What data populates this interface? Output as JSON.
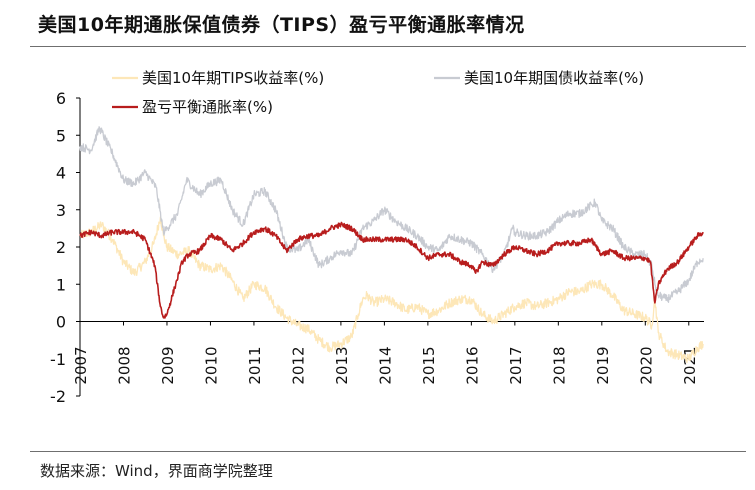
{
  "title": "美国10年期通胀保值债券（TIPS）盈亏平衡通胀率情况",
  "source": "数据来源：Wind，界面商学院整理",
  "chart_data": {
    "type": "line",
    "title": "美国10年期通胀保值债券（TIPS）盈亏平衡通胀率情况",
    "xlabel": "",
    "ylabel": "",
    "ylim": [
      -2,
      6
    ],
    "yticks": [
      -2,
      -1,
      0,
      1,
      2,
      3,
      4,
      5,
      6
    ],
    "xlim": [
      2007.0,
      2021.35
    ],
    "xticks": [
      "2007",
      "2008",
      "2009",
      "2010",
      "2011",
      "2012",
      "2013",
      "2014",
      "2015",
      "2016",
      "2017",
      "2018",
      "2019",
      "2020",
      "2021"
    ],
    "grid": false,
    "legend_position": "top",
    "series": [
      {
        "name": "美国10年期TIPS收益率(%)",
        "color": "#fde7b8",
        "x": [
          2007.0,
          2007.25,
          2007.5,
          2007.75,
          2008.0,
          2008.25,
          2008.5,
          2008.7,
          2008.85,
          2008.92,
          2009.0,
          2009.25,
          2009.5,
          2009.75,
          2010.0,
          2010.25,
          2010.5,
          2010.75,
          2011.0,
          2011.25,
          2011.5,
          2011.75,
          2012.0,
          2012.25,
          2012.5,
          2012.75,
          2013.0,
          2013.25,
          2013.4,
          2013.5,
          2013.6,
          2013.75,
          2014.0,
          2014.25,
          2014.5,
          2014.75,
          2015.0,
          2015.25,
          2015.5,
          2015.75,
          2016.0,
          2016.25,
          2016.5,
          2016.75,
          2017.0,
          2017.25,
          2017.5,
          2017.75,
          2018.0,
          2018.25,
          2018.5,
          2018.75,
          2019.0,
          2019.25,
          2019.5,
          2019.75,
          2020.0,
          2020.15,
          2020.22,
          2020.3,
          2020.5,
          2020.75,
          2021.0,
          2021.2,
          2021.33
        ],
        "values": [
          2.3,
          2.4,
          2.6,
          2.2,
          1.6,
          1.3,
          1.6,
          2.1,
          2.8,
          2.3,
          2.0,
          1.8,
          1.9,
          1.5,
          1.4,
          1.5,
          1.1,
          0.6,
          1.0,
          0.9,
          0.4,
          0.1,
          -0.1,
          -0.2,
          -0.5,
          -0.7,
          -0.6,
          -0.4,
          0.2,
          0.6,
          0.7,
          0.5,
          0.6,
          0.5,
          0.3,
          0.4,
          0.2,
          0.3,
          0.5,
          0.6,
          0.6,
          0.2,
          0.0,
          0.2,
          0.4,
          0.5,
          0.4,
          0.5,
          0.6,
          0.8,
          0.8,
          1.0,
          1.0,
          0.7,
          0.3,
          0.2,
          0.1,
          -0.1,
          0.6,
          -0.3,
          -0.8,
          -0.9,
          -1.0,
          -0.7,
          -0.6
        ]
      },
      {
        "name": "美国10年期国债收益率(%)",
        "color": "#c8cbd2",
        "x": [
          2007.0,
          2007.25,
          2007.45,
          2007.75,
          2008.0,
          2008.25,
          2008.5,
          2008.75,
          2008.92,
          2009.0,
          2009.25,
          2009.45,
          2009.75,
          2010.0,
          2010.25,
          2010.5,
          2010.75,
          2011.0,
          2011.25,
          2011.5,
          2011.75,
          2012.0,
          2012.25,
          2012.5,
          2012.75,
          2013.0,
          2013.25,
          2013.5,
          2013.75,
          2014.0,
          2014.25,
          2014.5,
          2014.75,
          2015.0,
          2015.25,
          2015.5,
          2015.75,
          2016.0,
          2016.25,
          2016.5,
          2016.75,
          2016.95,
          2017.0,
          2017.25,
          2017.5,
          2017.75,
          2018.0,
          2018.25,
          2018.5,
          2018.85,
          2019.0,
          2019.25,
          2019.5,
          2019.75,
          2020.0,
          2020.15,
          2020.22,
          2020.3,
          2020.5,
          2020.75,
          2021.0,
          2021.2,
          2021.33
        ],
        "values": [
          4.7,
          4.6,
          5.2,
          4.5,
          3.8,
          3.7,
          4.0,
          3.6,
          2.4,
          2.5,
          2.9,
          3.8,
          3.4,
          3.7,
          3.8,
          3.0,
          2.6,
          3.4,
          3.5,
          3.0,
          2.0,
          1.9,
          2.2,
          1.5,
          1.7,
          1.9,
          1.8,
          2.5,
          2.7,
          3.0,
          2.7,
          2.5,
          2.3,
          2.0,
          1.9,
          2.3,
          2.2,
          2.1,
          1.8,
          1.4,
          1.8,
          2.5,
          2.4,
          2.3,
          2.3,
          2.4,
          2.7,
          2.9,
          2.9,
          3.2,
          2.7,
          2.5,
          2.0,
          1.8,
          1.8,
          1.5,
          1.0,
          0.7,
          0.6,
          0.8,
          1.1,
          1.6,
          1.7
        ]
      },
      {
        "name": "盈亏平衡通胀率(%)",
        "color": "#b81d1d",
        "x": [
          2007.0,
          2007.25,
          2007.5,
          2007.75,
          2008.0,
          2008.25,
          2008.5,
          2008.72,
          2008.85,
          2008.92,
          2009.0,
          2009.2,
          2009.35,
          2009.5,
          2009.75,
          2010.0,
          2010.25,
          2010.5,
          2010.75,
          2011.0,
          2011.25,
          2011.5,
          2011.75,
          2012.0,
          2012.25,
          2012.5,
          2012.75,
          2013.0,
          2013.25,
          2013.5,
          2013.75,
          2014.0,
          2014.25,
          2014.5,
          2014.75,
          2015.0,
          2015.25,
          2015.5,
          2015.75,
          2016.0,
          2016.1,
          2016.25,
          2016.5,
          2016.75,
          2017.0,
          2017.25,
          2017.5,
          2017.75,
          2018.0,
          2018.25,
          2018.5,
          2018.75,
          2019.0,
          2019.25,
          2019.5,
          2019.75,
          2020.0,
          2020.12,
          2020.18,
          2020.22,
          2020.3,
          2020.5,
          2020.75,
          2021.0,
          2021.2,
          2021.33
        ],
        "values": [
          2.3,
          2.4,
          2.3,
          2.4,
          2.4,
          2.4,
          2.2,
          1.5,
          0.4,
          0.1,
          0.2,
          1.0,
          1.6,
          1.8,
          1.9,
          2.3,
          2.2,
          1.9,
          2.1,
          2.4,
          2.5,
          2.3,
          1.9,
          2.2,
          2.3,
          2.3,
          2.5,
          2.6,
          2.5,
          2.2,
          2.2,
          2.2,
          2.2,
          2.2,
          2.0,
          1.7,
          1.8,
          1.8,
          1.6,
          1.5,
          1.3,
          1.6,
          1.5,
          1.8,
          2.0,
          1.9,
          1.8,
          1.9,
          2.1,
          2.1,
          2.1,
          2.2,
          1.8,
          1.9,
          1.7,
          1.7,
          1.7,
          1.6,
          0.9,
          0.5,
          1.0,
          1.4,
          1.6,
          2.0,
          2.3,
          2.4
        ]
      }
    ]
  }
}
